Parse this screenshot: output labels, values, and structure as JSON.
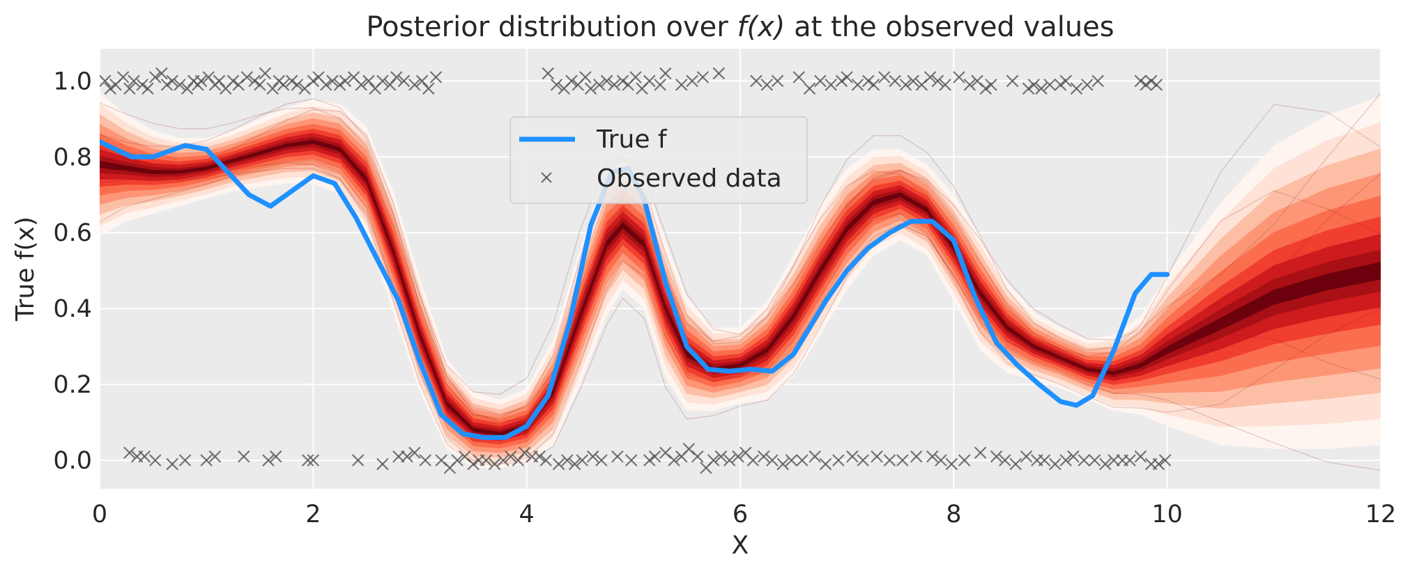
{
  "chart_data": {
    "type": "line",
    "title_prefix": "Posterior distribution over ",
    "title_math": "f(x)",
    "title_suffix": " at the observed values",
    "xlabel": "X",
    "ylabel": "True f(x)",
    "xlim": [
      0,
      12
    ],
    "ylim": [
      -0.075,
      1.085
    ],
    "xticks": [
      "0",
      "2",
      "4",
      "6",
      "8",
      "10",
      "12"
    ],
    "yticks": [
      "0.0",
      "0.2",
      "0.4",
      "0.6",
      "0.8",
      "1.0"
    ],
    "grid": true,
    "legend_position": "upper-center",
    "colors": {
      "true_f": "#1e90ff",
      "observed": "#555555",
      "plot_bg": "#ebebeb",
      "grid": "#ffffff",
      "posterior_dark": "#67000d",
      "posterior_light": "#fff5f0"
    },
    "series": [
      {
        "name": "True f",
        "style": "line",
        "x": [
          0,
          0.3,
          0.5,
          0.8,
          1.0,
          1.2,
          1.4,
          1.6,
          1.8,
          2.0,
          2.2,
          2.4,
          2.6,
          2.8,
          3.0,
          3.2,
          3.4,
          3.6,
          3.8,
          4.0,
          4.2,
          4.4,
          4.6,
          4.8,
          4.95,
          5.1,
          5.3,
          5.5,
          5.7,
          5.9,
          6.1,
          6.3,
          6.5,
          6.8,
          7.0,
          7.2,
          7.4,
          7.6,
          7.8,
          8.0,
          8.2,
          8.4,
          8.6,
          8.8,
          9.0,
          9.15,
          9.3,
          9.5,
          9.7,
          9.85,
          10.0
        ],
        "y": [
          0.84,
          0.8,
          0.8,
          0.83,
          0.82,
          0.76,
          0.7,
          0.67,
          0.71,
          0.75,
          0.73,
          0.64,
          0.53,
          0.42,
          0.26,
          0.12,
          0.07,
          0.06,
          0.06,
          0.09,
          0.17,
          0.36,
          0.62,
          0.76,
          0.77,
          0.69,
          0.47,
          0.3,
          0.24,
          0.235,
          0.24,
          0.235,
          0.28,
          0.42,
          0.5,
          0.56,
          0.6,
          0.63,
          0.63,
          0.58,
          0.43,
          0.31,
          0.25,
          0.2,
          0.155,
          0.145,
          0.17,
          0.29,
          0.44,
          0.49,
          0.49
        ]
      },
      {
        "name": "Observed data",
        "style": "marker-x",
        "x": [
          0.05,
          0.1,
          0.15,
          0.22,
          0.28,
          0.32,
          0.4,
          0.45,
          0.52,
          0.58,
          0.63,
          0.68,
          0.75,
          0.82,
          0.88,
          0.92,
          0.95,
          1.02,
          1.08,
          1.12,
          1.18,
          1.25,
          1.3,
          1.38,
          1.45,
          1.5,
          1.55,
          1.62,
          1.68,
          1.72,
          1.8,
          1.85,
          1.92,
          2.0,
          2.05,
          2.12,
          2.18,
          2.25,
          2.3,
          2.38,
          2.45,
          2.52,
          2.58,
          2.65,
          2.72,
          2.78,
          2.85,
          2.95,
          3.02,
          3.08,
          3.15,
          4.2,
          4.28,
          4.35,
          4.42,
          4.48,
          4.55,
          4.6,
          4.68,
          4.75,
          4.82,
          4.9,
          4.95,
          5.02,
          5.08,
          5.15,
          5.25,
          5.3,
          5.45,
          5.55,
          5.65,
          5.8,
          6.15,
          6.25,
          6.35,
          6.55,
          6.65,
          6.75,
          6.85,
          6.95,
          7.0,
          7.1,
          7.2,
          7.25,
          7.35,
          7.45,
          7.55,
          7.62,
          7.7,
          7.78,
          7.85,
          7.92,
          8.05,
          8.15,
          8.22,
          8.3,
          8.35,
          8.55,
          8.7,
          8.75,
          8.82,
          8.9,
          9.0,
          9.05,
          9.15,
          9.25,
          9.35,
          9.75,
          9.8,
          9.85,
          9.9,
          0.28,
          0.35,
          0.42,
          0.52,
          0.68,
          0.8,
          1.0,
          1.08,
          1.35,
          1.58,
          1.65,
          1.95,
          2.0,
          2.42,
          2.65,
          2.8,
          2.88,
          2.95,
          3.05,
          3.2,
          3.28,
          3.35,
          3.42,
          3.5,
          3.55,
          3.62,
          3.7,
          3.78,
          3.85,
          3.92,
          3.98,
          4.05,
          4.12,
          4.18,
          4.3,
          4.38,
          4.45,
          4.52,
          4.62,
          4.7,
          4.85,
          4.98,
          5.15,
          5.2,
          5.3,
          5.38,
          5.45,
          5.52,
          5.6,
          5.68,
          5.75,
          5.82,
          5.9,
          5.98,
          6.05,
          6.12,
          6.22,
          6.3,
          6.4,
          6.48,
          6.58,
          6.7,
          6.8,
          6.92,
          7.05,
          7.15,
          7.28,
          7.4,
          7.52,
          7.65,
          7.8,
          7.88,
          7.98,
          8.1,
          8.25,
          8.4,
          8.48,
          8.58,
          8.68,
          8.78,
          8.85,
          8.95,
          9.05,
          9.12,
          9.22,
          9.32,
          9.42,
          9.5,
          9.58,
          9.65,
          9.75,
          9.85,
          9.92,
          9.98
        ],
        "y": [
          1.0,
          0.98,
          0.99,
          1.01,
          0.98,
          1.0,
          0.99,
          0.98,
          1.01,
          1.02,
          0.99,
          1.0,
          0.99,
          0.98,
          1.0,
          0.99,
          1.0,
          1.01,
          0.99,
          1.0,
          0.98,
          1.0,
          0.99,
          1.01,
          1.0,
          0.99,
          1.02,
          0.98,
          1.0,
          0.99,
          1.0,
          0.99,
          0.98,
          1.0,
          1.01,
          0.99,
          1.0,
          0.99,
          1.0,
          1.01,
          0.99,
          1.0,
          0.98,
          1.0,
          0.99,
          1.01,
          1.0,
          0.99,
          1.0,
          0.98,
          1.01,
          1.02,
          0.99,
          0.98,
          1.0,
          0.99,
          1.01,
          0.98,
          0.99,
          1.0,
          0.99,
          1.0,
          0.99,
          1.01,
          0.98,
          1.0,
          0.99,
          1.02,
          0.99,
          1.0,
          1.01,
          1.02,
          1.0,
          0.99,
          1.0,
          1.01,
          0.98,
          1.0,
          0.99,
          1.0,
          1.01,
          0.99,
          1.0,
          0.99,
          1.01,
          1.0,
          0.99,
          1.0,
          0.99,
          1.01,
          1.0,
          0.99,
          1.01,
          0.99,
          1.0,
          0.98,
          0.99,
          1.0,
          0.98,
          0.99,
          0.98,
          0.99,
          0.99,
          1.0,
          0.98,
          0.99,
          1.0,
          1.0,
          0.99,
          1.0,
          0.99,
          0.02,
          0.01,
          0.01,
          0.0,
          -0.01,
          0.0,
          0.0,
          0.01,
          0.01,
          0.0,
          0.01,
          0.0,
          0.0,
          0.0,
          -0.01,
          0.01,
          0.01,
          0.02,
          0.0,
          0.0,
          -0.02,
          0.0,
          0.01,
          -0.01,
          0.0,
          0.0,
          -0.01,
          0.0,
          0.01,
          0.0,
          0.02,
          0.01,
          0.01,
          0.0,
          -0.01,
          0.0,
          -0.01,
          0.0,
          0.01,
          0.0,
          0.01,
          0.0,
          0.0,
          0.01,
          0.02,
          0.0,
          0.01,
          0.03,
          0.01,
          -0.02,
          0.0,
          0.01,
          0.0,
          0.01,
          0.02,
          0.0,
          0.01,
          0.0,
          -0.01,
          0.0,
          0.0,
          0.01,
          -0.01,
          0.0,
          0.01,
          0.0,
          0.01,
          0.0,
          0.0,
          0.01,
          0.01,
          0.0,
          -0.01,
          0.0,
          0.02,
          0.01,
          0.0,
          -0.01,
          0.01,
          0.0,
          0.0,
          -0.01,
          0.0,
          0.01,
          0.0,
          0.0,
          -0.01,
          0.0,
          0.0,
          0.0,
          0.01,
          -0.01,
          -0.01,
          0.0
        ]
      }
    ],
    "posterior": {
      "x": [
        0,
        0.25,
        0.5,
        0.75,
        1.0,
        1.25,
        1.5,
        1.75,
        2.0,
        2.25,
        2.5,
        2.75,
        3.0,
        3.25,
        3.5,
        3.75,
        4.0,
        4.25,
        4.5,
        4.75,
        4.9,
        5.1,
        5.3,
        5.5,
        5.75,
        6.0,
        6.25,
        6.5,
        6.75,
        7.0,
        7.25,
        7.5,
        7.75,
        8.0,
        8.25,
        8.5,
        8.75,
        9.0,
        9.25,
        9.5,
        9.75,
        10.0,
        10.5,
        11.0,
        11.5,
        12.0
      ],
      "median": [
        0.78,
        0.77,
        0.76,
        0.76,
        0.77,
        0.79,
        0.81,
        0.83,
        0.84,
        0.82,
        0.74,
        0.55,
        0.33,
        0.15,
        0.08,
        0.07,
        0.09,
        0.18,
        0.38,
        0.57,
        0.62,
        0.57,
        0.4,
        0.28,
        0.24,
        0.25,
        0.29,
        0.38,
        0.5,
        0.61,
        0.68,
        0.7,
        0.66,
        0.56,
        0.44,
        0.35,
        0.3,
        0.27,
        0.24,
        0.23,
        0.25,
        0.29,
        0.36,
        0.43,
        0.47,
        0.5
      ],
      "half_width": [
        0.19,
        0.14,
        0.11,
        0.09,
        0.08,
        0.08,
        0.09,
        0.1,
        0.11,
        0.12,
        0.14,
        0.16,
        0.15,
        0.12,
        0.1,
        0.09,
        0.1,
        0.14,
        0.18,
        0.19,
        0.17,
        0.17,
        0.18,
        0.15,
        0.11,
        0.1,
        0.13,
        0.16,
        0.17,
        0.16,
        0.14,
        0.12,
        0.12,
        0.14,
        0.15,
        0.12,
        0.09,
        0.08,
        0.08,
        0.1,
        0.13,
        0.2,
        0.32,
        0.4,
        0.44,
        0.46
      ]
    }
  }
}
